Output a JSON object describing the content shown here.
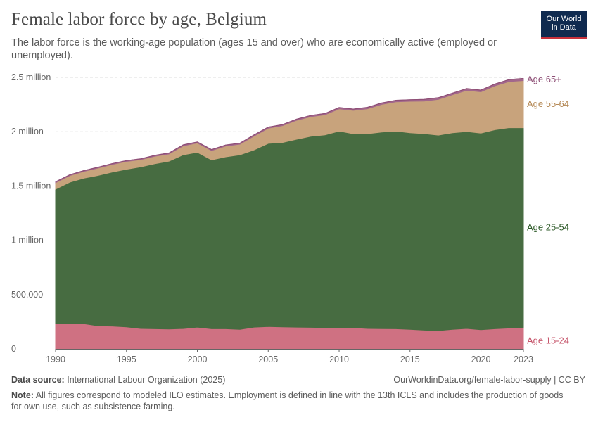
{
  "header": {
    "title": "Female labor force by age, Belgium",
    "subtitle": "The labor force is the working-age population (ages 15 and over) who are economically active (employed or unemployed).",
    "logo_line1": "Our World",
    "logo_line2": "in Data"
  },
  "footer": {
    "source_label": "Data source:",
    "source_text": "International Labour Organization (2025)",
    "url": "OurWorldinData.org/female-labor-supply | CC BY",
    "note_label": "Note:",
    "note_text": "All figures correspond to modeled ILO estimates. Employment is defined in line with the 13th ICLS and includes the production of goods for own use, such as subsistence farming."
  },
  "colors": {
    "age15_24": "#cf7182",
    "age25_54": "#476c41",
    "age55_64": "#c8a37c",
    "age65": "#a2678c",
    "label15_24": "#c6546a",
    "label25_54": "#2f5b2a",
    "label55_64": "#b58a57",
    "label65": "#8e4f76",
    "grid": "#dddddd",
    "axis": "#666666"
  },
  "chart_data": {
    "type": "area",
    "stacked": true,
    "title": "Female labor force by age, Belgium",
    "xlabel": "",
    "ylabel": "",
    "xlim": [
      1990,
      2023
    ],
    "ylim": [
      0,
      2500000
    ],
    "yticks": [
      0,
      500000,
      1000000,
      1500000,
      2000000,
      2500000
    ],
    "ytick_labels": [
      "0",
      "500,000",
      "1 million",
      "1.5 million",
      "2 million",
      "2.5 million"
    ],
    "xticks": [
      1990,
      1995,
      2000,
      2005,
      2010,
      2015,
      2020,
      2023
    ],
    "xtick_labels": [
      "1990",
      "1995",
      "2000",
      "2005",
      "2010",
      "2015",
      "2020",
      "2023"
    ],
    "x": [
      1990,
      1991,
      1992,
      1993,
      1994,
      1995,
      1996,
      1997,
      1998,
      1999,
      2000,
      2001,
      2002,
      2003,
      2004,
      2005,
      2006,
      2007,
      2008,
      2009,
      2010,
      2011,
      2012,
      2013,
      2014,
      2015,
      2016,
      2017,
      2018,
      2019,
      2020,
      2021,
      2022,
      2023
    ],
    "series": [
      {
        "name": "Age 15-24",
        "label": "Age 15-24",
        "color_key": "age15_24",
        "values": [
          230000,
          235000,
          232000,
          212000,
          210000,
          202000,
          188000,
          185000,
          183000,
          187000,
          200000,
          185000,
          185000,
          180000,
          200000,
          205000,
          203000,
          200000,
          198000,
          196000,
          197000,
          196000,
          188000,
          186000,
          185000,
          180000,
          172000,
          168000,
          180000,
          188000,
          177000,
          185000,
          192000,
          198000
        ]
      },
      {
        "name": "Age 25-54",
        "label": "Age 25-54",
        "color_key": "age25_54",
        "values": [
          1240000,
          1300000,
          1340000,
          1385000,
          1418000,
          1452000,
          1488000,
          1520000,
          1545000,
          1600000,
          1610000,
          1555000,
          1583000,
          1607000,
          1632000,
          1687000,
          1697000,
          1730000,
          1760000,
          1775000,
          1808000,
          1785000,
          1793000,
          1810000,
          1820000,
          1810000,
          1810000,
          1800000,
          1810000,
          1813000,
          1810000,
          1833000,
          1845000,
          1838000
        ]
      },
      {
        "name": "Age 55-64",
        "label": "Age 55-64",
        "color_key": "age55_64",
        "values": [
          60000,
          60000,
          62000,
          68000,
          70000,
          72000,
          66000,
          69000,
          67000,
          82000,
          86000,
          86000,
          100000,
          98000,
          128000,
          140000,
          155000,
          175000,
          180000,
          185000,
          205000,
          215000,
          230000,
          255000,
          270000,
          290000,
          300000,
          330000,
          350000,
          380000,
          380000,
          405000,
          425000,
          435000
        ]
      },
      {
        "name": "Age 65+",
        "label": "Age 65+",
        "color_key": "age65",
        "values": [
          8000,
          8000,
          8000,
          8000,
          8000,
          8000,
          8000,
          8000,
          9000,
          9000,
          9000,
          9000,
          9000,
          9000,
          10000,
          10000,
          10000,
          10000,
          11000,
          11000,
          12000,
          12000,
          13000,
          13000,
          14000,
          14000,
          15000,
          15000,
          15000,
          16000,
          16000,
          17000,
          18000,
          19000
        ]
      }
    ]
  }
}
